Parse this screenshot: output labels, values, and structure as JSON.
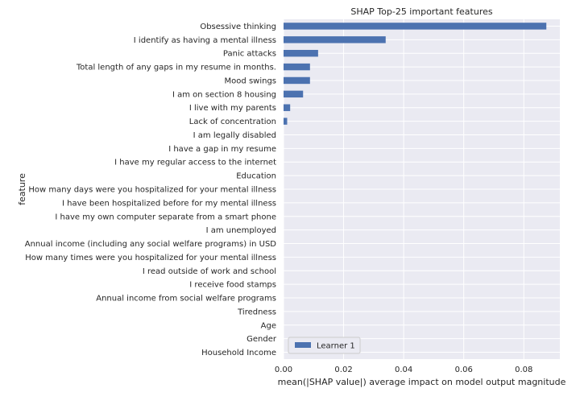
{
  "chart_data": {
    "type": "bar",
    "orientation": "horizontal",
    "title": "SHAP Top-25 important features",
    "xlabel": "mean(|SHAP value|) average impact on model output magnitude",
    "ylabel": "feature",
    "xlim": [
      0,
      0.092
    ],
    "xticks": [
      0.0,
      0.02,
      0.04,
      0.06,
      0.08
    ],
    "xtick_labels": [
      "0.00",
      "0.02",
      "0.04",
      "0.06",
      "0.08"
    ],
    "grid": true,
    "legend_position": "lower-left",
    "colors": {
      "bar": "#4c72b0",
      "background": "#eaeaf2",
      "grid": "#ffffff"
    },
    "categories": [
      "Obsessive thinking",
      "I identify as having a mental illness",
      "Panic attacks",
      "Total length of any gaps in my resume in months.",
      "Mood swings",
      "I am on section 8 housing",
      "I live with my parents",
      "Lack of concentration",
      "I am legally disabled",
      "I have a gap in my resume",
      "I have my regular access to the internet",
      "Education",
      "How many days were you hospitalized for your mental illness",
      "I have been hospitalized before for my mental illness",
      "I have my own computer separate from a smart phone",
      "I am unemployed",
      "Annual income (including any social welfare programs) in USD",
      "How many times were you hospitalized for your mental illness",
      "I read outside of work and school",
      "I receive food stamps",
      "Annual income from social welfare programs",
      "Tiredness",
      "Age",
      "Gender",
      "Household Income"
    ],
    "series": [
      {
        "name": "Learner 1",
        "values": [
          0.0875,
          0.034,
          0.0115,
          0.0088,
          0.0088,
          0.0065,
          0.0022,
          0.0012,
          0,
          0,
          0,
          0,
          0,
          0,
          0,
          0,
          0,
          0,
          0,
          0,
          0,
          0,
          0,
          0,
          0
        ]
      }
    ]
  }
}
